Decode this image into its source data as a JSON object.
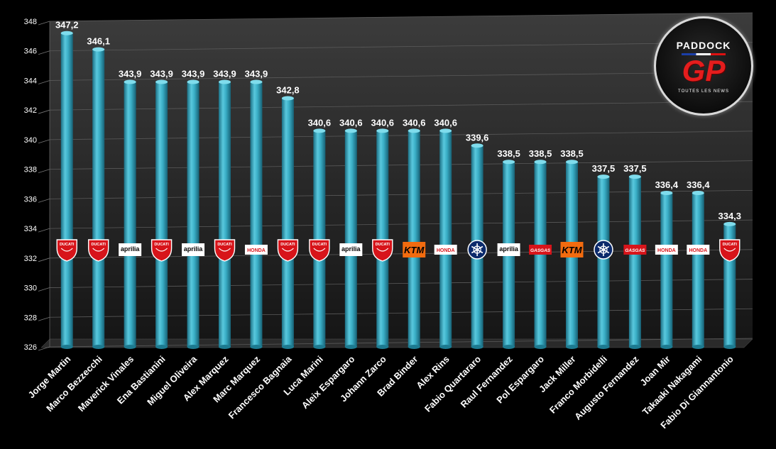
{
  "chart_data": {
    "type": "bar",
    "title": "",
    "xlabel": "",
    "ylabel": "",
    "ylim": [
      326,
      348
    ],
    "yticks": [
      "326",
      "328",
      "330",
      "332",
      "334",
      "336",
      "338",
      "340",
      "342",
      "344",
      "346",
      "348"
    ],
    "categories": [
      "Jorge Martin",
      "Marco Bezzecchi",
      "Maverick Vinales",
      "Ena Bastianini",
      "Miguel Oliveira",
      "Alex Marquez",
      "Marc Marquez",
      "Francesco Bagnaia",
      "Luca Marini",
      "Aleix Espargaro",
      "Johann Zarco",
      "Brad Binder",
      "Alex Rins",
      "Fabio Quartararo",
      "Raul Fernandez",
      "Pol Espargaro",
      "Jack Miller",
      "Franco Morbidelli",
      "Augusto Fernandez",
      "Joan Mir",
      "Takaaki Nakagami",
      "Fabio Di Giannantonio"
    ],
    "values": [
      347.2,
      346.1,
      343.9,
      343.9,
      343.9,
      343.9,
      343.9,
      342.8,
      340.6,
      340.6,
      340.6,
      340.6,
      340.6,
      339.6,
      338.5,
      338.5,
      338.5,
      337.5,
      337.5,
      336.4,
      336.4,
      334.3
    ],
    "value_labels": [
      "347,2",
      "346,1",
      "343,9",
      "343,9",
      "343,9",
      "343,9",
      "343,9",
      "342,8",
      "340,6",
      "340,6",
      "340,6",
      "340,6",
      "340,6",
      "339,6",
      "338,5",
      "338,5",
      "338,5",
      "337,5",
      "337,5",
      "336,4",
      "336,4",
      "334,3"
    ],
    "manufacturers": [
      "ducati",
      "ducati",
      "aprilia",
      "ducati",
      "aprilia",
      "ducati",
      "honda",
      "ducati",
      "ducati",
      "aprilia",
      "ducati",
      "ktm",
      "honda",
      "yamaha",
      "aprilia",
      "gasgas",
      "ktm",
      "yamaha",
      "gasgas",
      "honda",
      "honda",
      "ducati"
    ],
    "logo_text": {
      "ducati": "DUCATI",
      "aprilia": "aprilia",
      "honda": "HONDA",
      "ktm": "KTM",
      "gasgas": "GASGAS",
      "yamaha": ""
    },
    "bar_color": "#3aaec6",
    "grid": true,
    "legend": "none"
  },
  "brand": {
    "line1": "PADDOCK",
    "line2": "GP",
    "line3": "TOUTES LES NEWS"
  }
}
